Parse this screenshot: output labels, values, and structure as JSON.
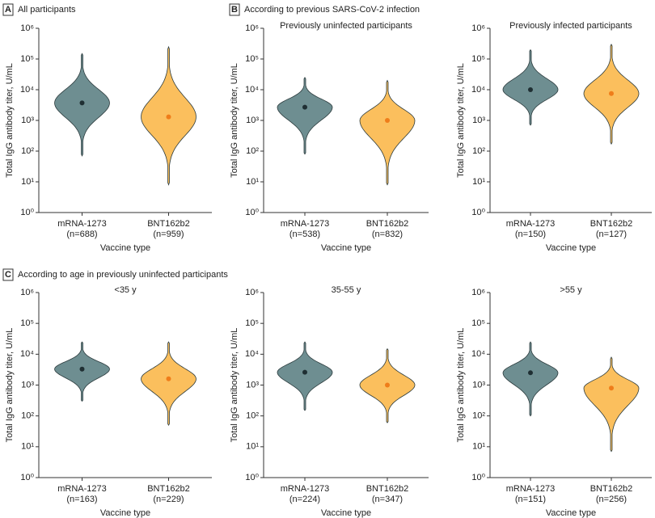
{
  "chart_data": [
    {
      "type": "violin",
      "panel": "A",
      "panel_title": "All participants",
      "ylabel": "Total IgG antibody titer, U/mL",
      "xlabel": "Vaccine type",
      "categories": [
        "mRNA-1273",
        "BNT162b2"
      ],
      "n_labels": [
        "(n=688)",
        "(n=959)"
      ],
      "values": [
        3700,
        1300
      ],
      "mins": [
        70,
        8
      ],
      "maxs": [
        150000,
        250000
      ],
      "colors": [
        "#6e8e91",
        "#fbbf5d"
      ],
      "dot_colors": [
        "#1f2f33",
        "#ef7d1a"
      ],
      "log": true,
      "ylim": [
        1,
        1000000
      ],
      "yticks": [
        {
          "value": 1,
          "label": "10⁰"
        },
        {
          "value": 10,
          "label": "10¹"
        },
        {
          "value": 100,
          "label": "10²"
        },
        {
          "value": 1000,
          "label": "10³"
        },
        {
          "value": 10000,
          "label": "10⁴"
        },
        {
          "value": 100000,
          "label": "10⁵"
        },
        {
          "value": 1000000,
          "label": "10⁶"
        }
      ]
    },
    {
      "type": "violin",
      "panel": "B",
      "panel_title": "According to previous SARS-CoV-2 infection",
      "subtitle": "Previously uninfected participants",
      "ylabel": "Total IgG antibody titer, U/mL",
      "xlabel": "Vaccine type",
      "categories": [
        "mRNA-1273",
        "BNT162b2"
      ],
      "n_labels": [
        "(n=538)",
        "(n=832)"
      ],
      "values": [
        2700,
        1000
      ],
      "mins": [
        80,
        8
      ],
      "maxs": [
        25000,
        20000
      ],
      "colors": [
        "#6e8e91",
        "#fbbf5d"
      ],
      "dot_colors": [
        "#1f2f33",
        "#ef7d1a"
      ],
      "log": true,
      "ylim": [
        1,
        1000000
      ],
      "yticks": [
        {
          "value": 1,
          "label": "10⁰"
        },
        {
          "value": 10,
          "label": "10¹"
        },
        {
          "value": 100,
          "label": "10²"
        },
        {
          "value": 1000,
          "label": "10³"
        },
        {
          "value": 10000,
          "label": "10⁴"
        },
        {
          "value": 100000,
          "label": "10⁵"
        },
        {
          "value": 1000000,
          "label": "10⁶"
        }
      ]
    },
    {
      "type": "violin",
      "subtitle": "Previously infected participants",
      "ylabel": "Total IgG antibody titer, U/mL",
      "xlabel": "Vaccine type",
      "categories": [
        "mRNA-1273",
        "BNT162b2"
      ],
      "n_labels": [
        "(n=150)",
        "(n=127)"
      ],
      "values": [
        10000,
        7500
      ],
      "mins": [
        700,
        170
      ],
      "maxs": [
        200000,
        300000
      ],
      "colors": [
        "#6e8e91",
        "#fbbf5d"
      ],
      "dot_colors": [
        "#1f2f33",
        "#ef7d1a"
      ],
      "log": true,
      "ylim": [
        1,
        1000000
      ],
      "yticks": [
        {
          "value": 1,
          "label": "10⁰"
        },
        {
          "value": 10,
          "label": "10¹"
        },
        {
          "value": 100,
          "label": "10²"
        },
        {
          "value": 1000,
          "label": "10³"
        },
        {
          "value": 10000,
          "label": "10⁴"
        },
        {
          "value": 100000,
          "label": "10⁵"
        },
        {
          "value": 1000000,
          "label": "10⁶"
        }
      ]
    },
    {
      "type": "violin",
      "panel": "C",
      "panel_title": "According to age in previously uninfected participants",
      "subtitle": "<35 y",
      "ylabel": "Total IgG antibody titer, U/mL",
      "xlabel": "Vaccine type",
      "categories": [
        "mRNA-1273",
        "BNT162b2"
      ],
      "n_labels": [
        "(n=163)",
        "(n=229)"
      ],
      "values": [
        3300,
        1600
      ],
      "mins": [
        300,
        50
      ],
      "maxs": [
        25000,
        25000
      ],
      "colors": [
        "#6e8e91",
        "#fbbf5d"
      ],
      "dot_colors": [
        "#1f2f33",
        "#ef7d1a"
      ],
      "log": true,
      "ylim": [
        1,
        1000000
      ],
      "yticks": [
        {
          "value": 1,
          "label": "10⁰"
        },
        {
          "value": 10,
          "label": "10¹"
        },
        {
          "value": 100,
          "label": "10²"
        },
        {
          "value": 1000,
          "label": "10³"
        },
        {
          "value": 10000,
          "label": "10⁴"
        },
        {
          "value": 100000,
          "label": "10⁵"
        },
        {
          "value": 1000000,
          "label": "10⁶"
        }
      ]
    },
    {
      "type": "violin",
      "subtitle": "35-55 y",
      "ylabel": "Total IgG antibody titer, U/mL",
      "xlabel": "Vaccine type",
      "categories": [
        "mRNA-1273",
        "BNT162b2"
      ],
      "n_labels": [
        "(n=224)",
        "(n=347)"
      ],
      "values": [
        2600,
        1000
      ],
      "mins": [
        150,
        60
      ],
      "maxs": [
        25000,
        15000
      ],
      "colors": [
        "#6e8e91",
        "#fbbf5d"
      ],
      "dot_colors": [
        "#1f2f33",
        "#ef7d1a"
      ],
      "log": true,
      "ylim": [
        1,
        1000000
      ],
      "yticks": [
        {
          "value": 1,
          "label": "10⁰"
        },
        {
          "value": 10,
          "label": "10¹"
        },
        {
          "value": 100,
          "label": "10²"
        },
        {
          "value": 1000,
          "label": "10³"
        },
        {
          "value": 10000,
          "label": "10⁴"
        },
        {
          "value": 100000,
          "label": "10⁵"
        },
        {
          "value": 1000000,
          "label": "10⁶"
        }
      ]
    },
    {
      "type": "violin",
      "subtitle": ">55 y",
      "ylabel": "Total IgG antibody titer, U/mL",
      "xlabel": "Vaccine type",
      "categories": [
        "mRNA-1273",
        "BNT162b2"
      ],
      "n_labels": [
        "(n=151)",
        "(n=256)"
      ],
      "values": [
        2500,
        800
      ],
      "mins": [
        100,
        7
      ],
      "maxs": [
        25000,
        8000
      ],
      "colors": [
        "#6e8e91",
        "#fbbf5d"
      ],
      "dot_colors": [
        "#1f2f33",
        "#ef7d1a"
      ],
      "log": true,
      "ylim": [
        1,
        1000000
      ],
      "yticks": [
        {
          "value": 1,
          "label": "10⁰"
        },
        {
          "value": 10,
          "label": "10¹"
        },
        {
          "value": 100,
          "label": "10²"
        },
        {
          "value": 1000,
          "label": "10³"
        },
        {
          "value": 10000,
          "label": "10⁴"
        },
        {
          "value": 100000,
          "label": "10⁵"
        },
        {
          "value": 1000000,
          "label": "10⁶"
        }
      ]
    }
  ]
}
